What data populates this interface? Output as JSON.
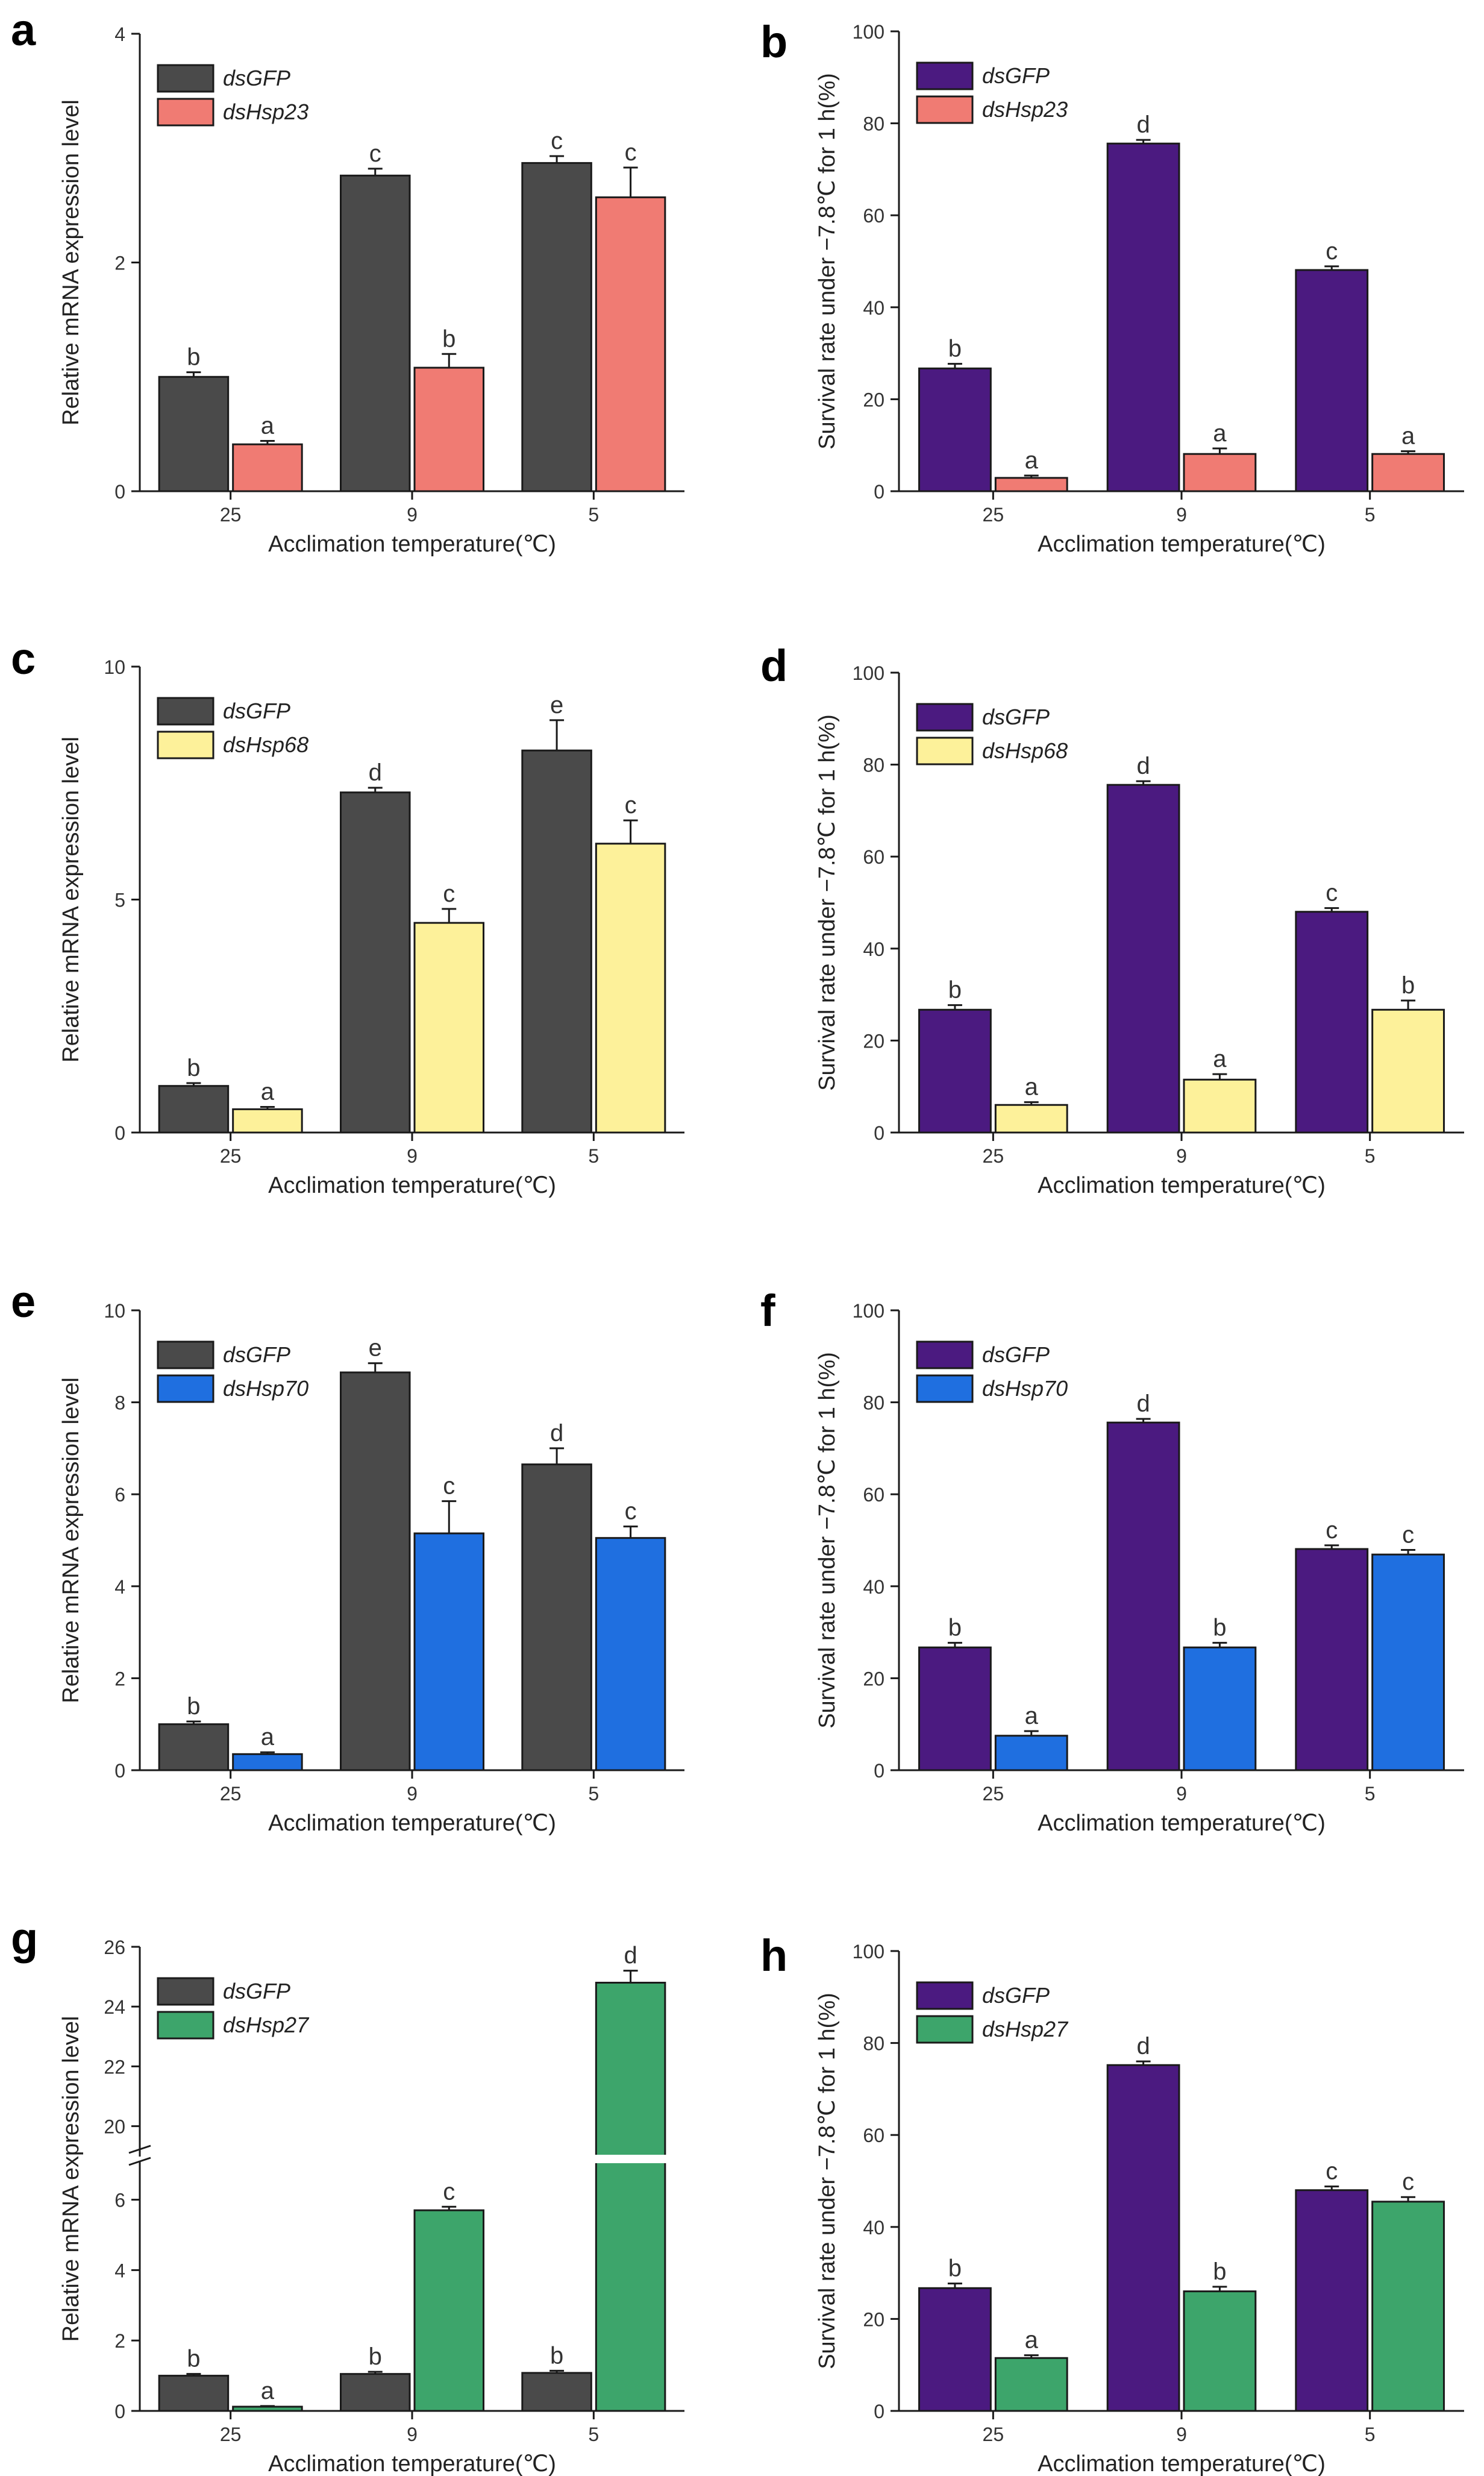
{
  "figure": {
    "x_label": "Acclimation temperature(℃)"
  },
  "colors": {
    "dsGFP_expr": "#4a4a4a",
    "dsGFP_surv": "#4b1a80",
    "dsHsp23": "#f07b73",
    "dsHsp68": "#fdf19a",
    "dsHsp70": "#1f6fe0",
    "dsHsp27": "#3da56b"
  },
  "chart_data": [
    {
      "panel": "a",
      "type": "bar",
      "xlabel": "Acclimation temperature(℃)",
      "ylabel": "Relative mRNA expression level",
      "categories": [
        "25",
        "9",
        "5"
      ],
      "ylim": [
        0,
        4
      ],
      "yticks": [
        "0",
        "2",
        "4"
      ],
      "series": [
        {
          "name": "dsGFP",
          "color": "#4a4a4a",
          "values": [
            1.0,
            2.76,
            2.87
          ],
          "errors": [
            0.04,
            0.06,
            0.06
          ],
          "letters": [
            "b",
            "c",
            "c"
          ]
        },
        {
          "name": "dsHsp23",
          "color": "#f07b73",
          "values": [
            0.41,
            1.08,
            2.57
          ],
          "errors": [
            0.03,
            0.12,
            0.26
          ],
          "letters": [
            "a",
            "b",
            "c"
          ]
        }
      ]
    },
    {
      "panel": "b",
      "type": "bar",
      "xlabel": "Acclimation temperature(℃)",
      "ylabel": "Survival rate under −7.8℃ for 1 h(%)",
      "categories": [
        "25",
        "9",
        "5"
      ],
      "ylim": [
        0,
        100
      ],
      "yticks": [
        "0",
        "20",
        "40",
        "60",
        "80",
        "100"
      ],
      "series": [
        {
          "name": "dsGFP",
          "color": "#4b1a80",
          "values": [
            26.7,
            75.6,
            48.1
          ],
          "errors": [
            1.0,
            0.8,
            0.8
          ],
          "letters": [
            "b",
            "d",
            "c"
          ]
        },
        {
          "name": "dsHsp23",
          "color": "#f07b73",
          "values": [
            2.9,
            8.1,
            8.1
          ],
          "errors": [
            0.5,
            1.2,
            0.6
          ],
          "letters": [
            "a",
            "a",
            "a"
          ]
        }
      ]
    },
    {
      "panel": "c",
      "type": "bar",
      "xlabel": "Acclimation temperature(℃)",
      "ylabel": "Relative mRNA expression level",
      "categories": [
        "25",
        "9",
        "5"
      ],
      "ylim": [
        0,
        10
      ],
      "yticks": [
        "0",
        "5",
        "10"
      ],
      "series": [
        {
          "name": "dsGFP",
          "color": "#4a4a4a",
          "values": [
            1.0,
            7.3,
            8.2
          ],
          "errors": [
            0.06,
            0.1,
            0.65
          ],
          "letters": [
            "b",
            "d",
            "e"
          ]
        },
        {
          "name": "dsHsp68",
          "color": "#fdf19a",
          "values": [
            0.5,
            4.5,
            6.2
          ],
          "errors": [
            0.05,
            0.3,
            0.5
          ],
          "letters": [
            "a",
            "c",
            "c"
          ]
        }
      ]
    },
    {
      "panel": "d",
      "type": "bar",
      "xlabel": "Acclimation temperature(℃)",
      "ylabel": "Survival rate under −7.8℃ for 1 h(%)",
      "categories": [
        "25",
        "9",
        "5"
      ],
      "ylim": [
        0,
        100
      ],
      "yticks": [
        "0",
        "20",
        "40",
        "60",
        "80",
        "100"
      ],
      "series": [
        {
          "name": "dsGFP",
          "color": "#4b1a80",
          "values": [
            26.7,
            75.6,
            48.0
          ],
          "errors": [
            1.0,
            0.8,
            0.8
          ],
          "letters": [
            "b",
            "d",
            "c"
          ]
        },
        {
          "name": "dsHsp68",
          "color": "#fdf19a",
          "values": [
            6.0,
            11.5,
            26.7
          ],
          "errors": [
            0.6,
            1.2,
            2.0
          ],
          "letters": [
            "a",
            "a",
            "b"
          ]
        }
      ]
    },
    {
      "panel": "e",
      "type": "bar",
      "xlabel": "Acclimation temperature(℃)",
      "ylabel": "Relative mRNA expression level",
      "categories": [
        "25",
        "9",
        "5"
      ],
      "ylim": [
        0,
        10
      ],
      "yticks": [
        "0",
        "2",
        "4",
        "6",
        "8",
        "10"
      ],
      "series": [
        {
          "name": "dsGFP",
          "color": "#4a4a4a",
          "values": [
            1.0,
            8.65,
            6.65
          ],
          "errors": [
            0.06,
            0.2,
            0.35
          ],
          "letters": [
            "b",
            "e",
            "d"
          ]
        },
        {
          "name": "dsHsp70",
          "color": "#1f6fe0",
          "values": [
            0.35,
            5.15,
            5.05
          ],
          "errors": [
            0.04,
            0.7,
            0.25
          ],
          "letters": [
            "a",
            "c",
            "c"
          ]
        }
      ]
    },
    {
      "panel": "f",
      "type": "bar",
      "xlabel": "Acclimation temperature(℃)",
      "ylabel": "Survival rate under −7.8℃ for 1 h(%)",
      "categories": [
        "25",
        "9",
        "5"
      ],
      "ylim": [
        0,
        100
      ],
      "yticks": [
        "0",
        "20",
        "40",
        "60",
        "80",
        "100"
      ],
      "series": [
        {
          "name": "dsGFP",
          "color": "#4b1a80",
          "values": [
            26.7,
            75.6,
            48.1
          ],
          "errors": [
            1.0,
            0.8,
            0.8
          ],
          "letters": [
            "b",
            "d",
            "c"
          ]
        },
        {
          "name": "dsHsp70",
          "color": "#1f6fe0",
          "values": [
            7.5,
            26.7,
            46.9
          ],
          "errors": [
            1.0,
            1.0,
            1.0
          ],
          "letters": [
            "a",
            "b",
            "c"
          ]
        }
      ]
    },
    {
      "panel": "g",
      "type": "bar",
      "xlabel": "Acclimation temperature(℃)",
      "ylabel": "Relative mRNA expression level",
      "categories": [
        "25",
        "9",
        "5"
      ],
      "ylim": [
        0,
        26
      ],
      "yticks": [
        "0",
        "2",
        "4",
        "6",
        "20",
        "22",
        "24",
        "26"
      ],
      "axis_break": [
        7.5,
        18.5
      ],
      "series": [
        {
          "name": "dsGFP",
          "color": "#4a4a4a",
          "values": [
            1.0,
            1.05,
            1.08
          ],
          "errors": [
            0.05,
            0.06,
            0.06
          ],
          "letters": [
            "b",
            "b",
            "b"
          ]
        },
        {
          "name": "dsHsp27",
          "color": "#3da56b",
          "values": [
            0.12,
            5.7,
            24.8
          ],
          "errors": [
            0.02,
            0.1,
            0.4
          ],
          "letters": [
            "a",
            "c",
            "d"
          ]
        }
      ]
    },
    {
      "panel": "h",
      "type": "bar",
      "xlabel": "Acclimation temperature(℃)",
      "ylabel": "Survival rate under −7.8℃ for 1 h(%)",
      "categories": [
        "25",
        "9",
        "5"
      ],
      "ylim": [
        0,
        100
      ],
      "yticks": [
        "0",
        "20",
        "40",
        "60",
        "80",
        "100"
      ],
      "series": [
        {
          "name": "dsGFP",
          "color": "#4b1a80",
          "values": [
            26.7,
            75.2,
            48.0
          ],
          "errors": [
            1.0,
            0.8,
            0.8
          ],
          "letters": [
            "b",
            "d",
            "c"
          ]
        },
        {
          "name": "dsHsp27",
          "color": "#3da56b",
          "values": [
            11.5,
            26.0,
            45.5
          ],
          "errors": [
            0.6,
            1.0,
            1.0
          ],
          "letters": [
            "a",
            "b",
            "c"
          ]
        }
      ]
    }
  ]
}
